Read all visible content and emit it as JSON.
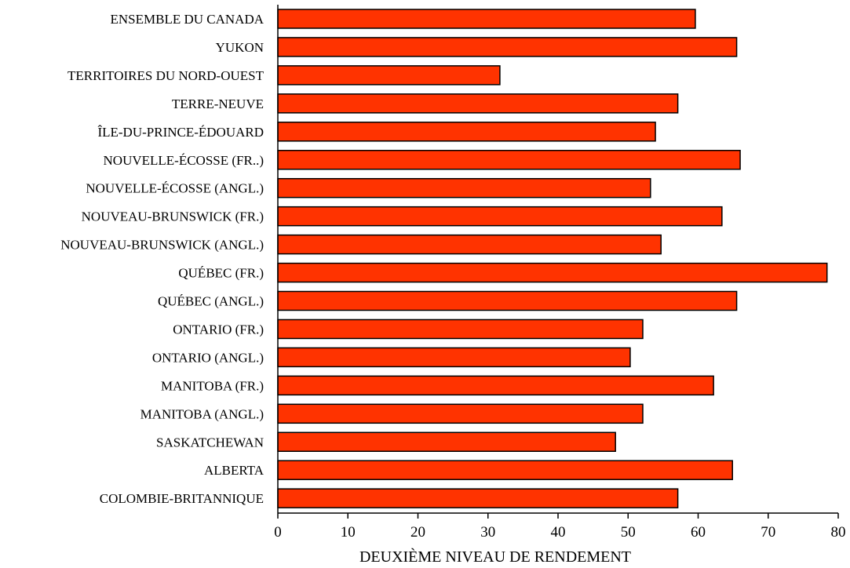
{
  "chart_data": {
    "type": "bar",
    "orientation": "horizontal",
    "title": "",
    "xlabel": "DEUXIÈME NIVEAU DE RENDEMENT",
    "ylabel": "",
    "xlim": [
      0,
      80
    ],
    "xticks": [
      0,
      10,
      20,
      30,
      40,
      50,
      60,
      70,
      80
    ],
    "grid": false,
    "bar_color": "#ff3300",
    "categories": [
      "ENSEMBLE DU CANADA",
      "YUKON",
      "TERRITOIRES DU NORD-OUEST",
      "TERRE-NEUVE",
      "ÎLE-DU-PRINCE-ÉDOUARD",
      "NOUVELLE-ÉCOSSE (FR..)",
      "NOUVELLE-ÉCOSSE (ANGL.)",
      "NOUVEAU-BRUNSWICK (FR.)",
      "NOUVEAU-BRUNSWICK (ANGL.)",
      "QUÉBEC (FR.)",
      "QUÉBEC (ANGL.)",
      "ONTARIO (FR.)",
      "ONTARIO (ANGL.)",
      "MANITOBA (FR.)",
      "MANITOBA (ANGL.)",
      "SASKATCHEWAN",
      "ALBERTA",
      "COLOMBIE-BRITANNIQUE"
    ],
    "values": [
      59.6,
      65.5,
      31.7,
      57.1,
      53.9,
      66.0,
      53.2,
      63.4,
      54.7,
      78.4,
      65.5,
      52.1,
      50.3,
      62.2,
      52.1,
      48.2,
      64.9,
      57.1
    ]
  }
}
